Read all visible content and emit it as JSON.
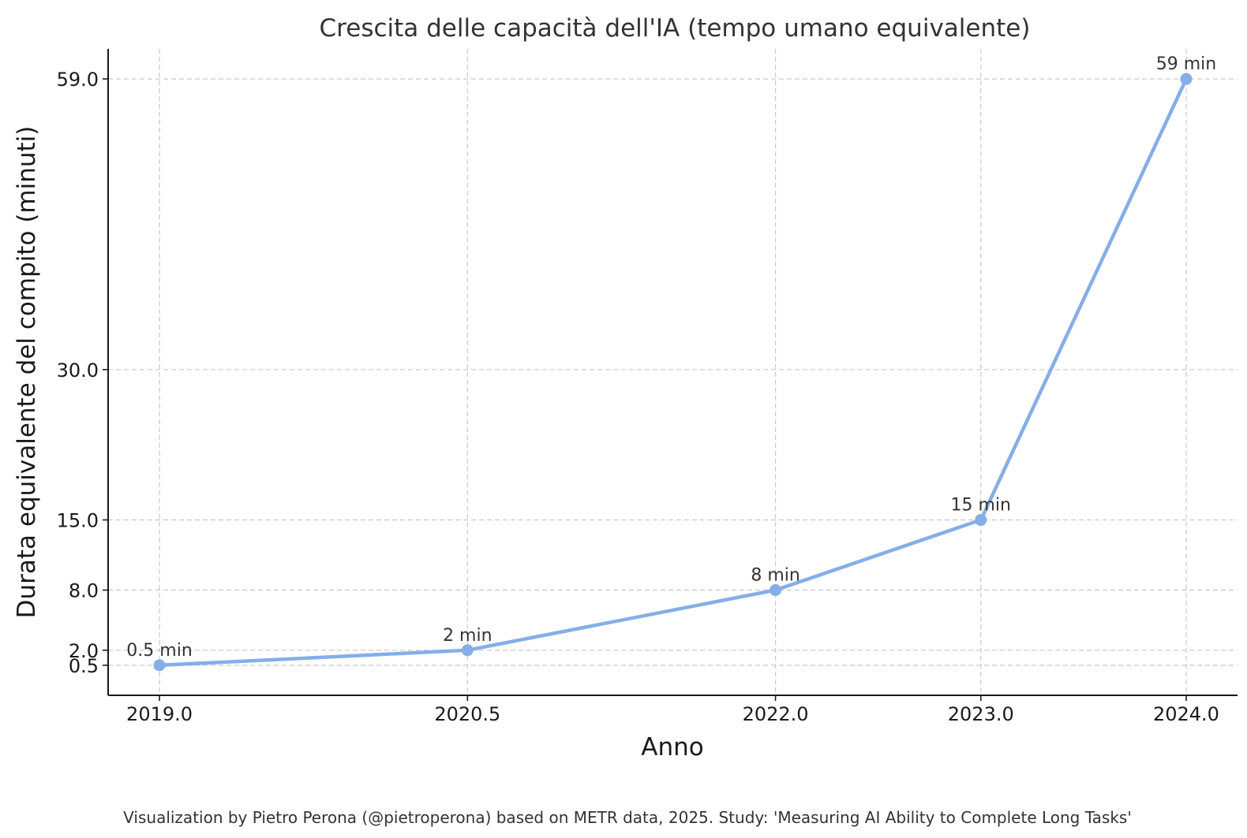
{
  "chart_data": {
    "type": "line",
    "title": "Crescita delle capacità dell'IA (tempo umano equivalente)",
    "xlabel": "Anno",
    "ylabel": "Durata equivalente del compito (minuti)",
    "x": [
      2019.0,
      2020.5,
      2022.0,
      2023.0,
      2024.0
    ],
    "x_tick_labels": [
      "2019.0",
      "2020.5",
      "2022.0",
      "2023.0",
      "2024.0"
    ],
    "y_ticks": [
      0.5,
      2.0,
      8.0,
      15.0,
      30.0,
      59.0
    ],
    "y_tick_labels": [
      "0.5",
      "2.0",
      "8.0",
      "15.0",
      "30.0",
      "59.0"
    ],
    "xlim": [
      2018.75,
      2024.25
    ],
    "ylim": [
      -2.5,
      62
    ],
    "grid": true,
    "series": [
      {
        "values": [
          0.5,
          2,
          8,
          15,
          59
        ],
        "color": "#85aee8",
        "data_labels": [
          "0.5 min",
          "2 min",
          "8 min",
          "15 min",
          "59 min"
        ]
      }
    ]
  },
  "footnote": "Visualization by Pietro Perona (@pietroperona) based on METR data, 2025. Study: 'Measuring AI Ability to Complete Long Tasks'"
}
